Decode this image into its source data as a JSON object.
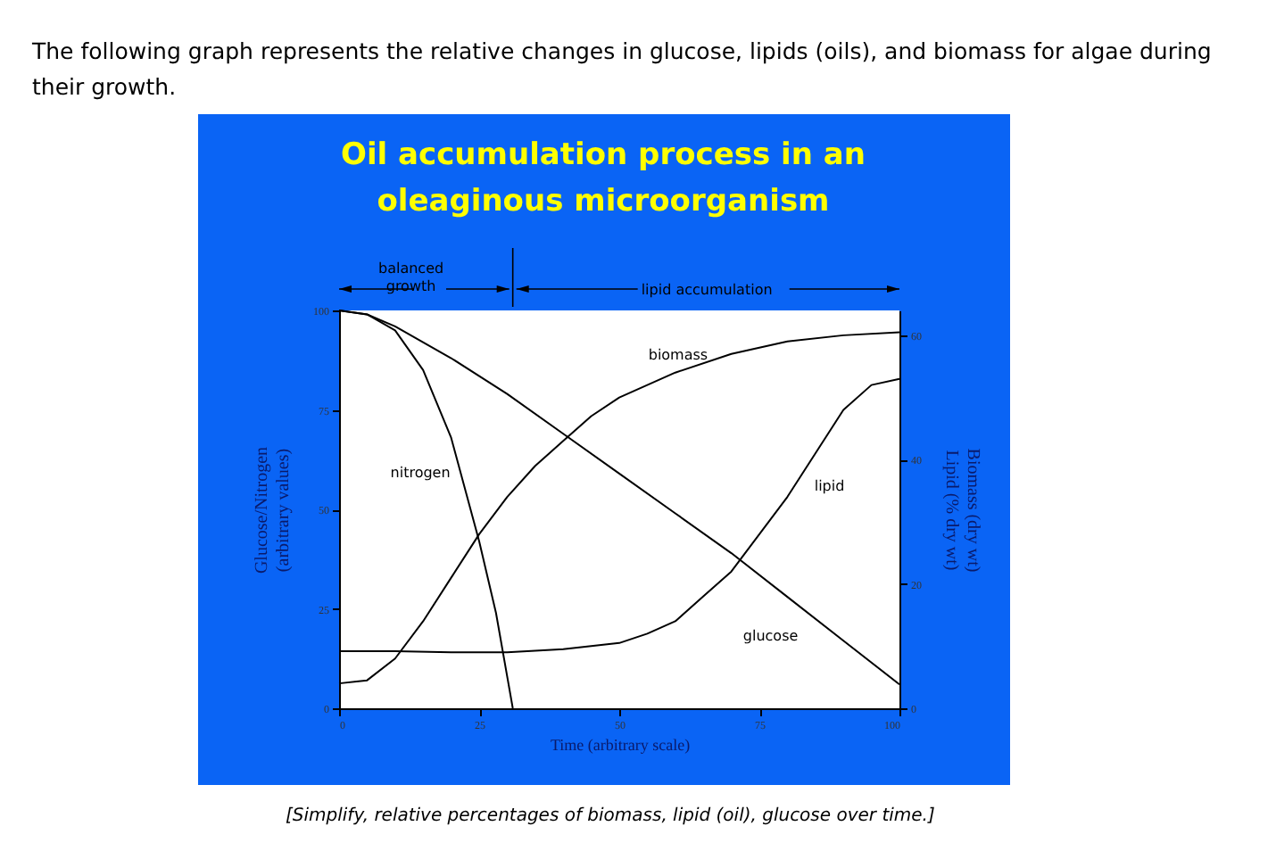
{
  "chart_data": {
    "type": "line",
    "title": "Oil accumulation process in an oleaginous microorganism",
    "xlabel": "Time (arbitrary scale)",
    "ylabel": "Glucose/Nitrogen\n(arbitrary values)",
    "y2label": "Biomass (dry wt)\nLipid (% dry wt)",
    "xlim": [
      0,
      100
    ],
    "xticks": [
      0,
      25,
      50,
      75,
      100
    ],
    "ylim": [
      0,
      100
    ],
    "yticks": [
      0,
      25,
      50,
      75,
      100
    ],
    "y2lim": [
      0,
      64
    ],
    "y2ticks": [
      0,
      20,
      40,
      60
    ],
    "grid": false,
    "legend": false,
    "marker": "none",
    "line_style": "solid",
    "series": [
      {
        "name": "glucose",
        "color": "#000000",
        "x": [
          0,
          5,
          10,
          20,
          30,
          40,
          50,
          60,
          70,
          80,
          90,
          100
        ],
        "values": [
          100,
          99,
          96,
          88,
          79,
          69,
          59,
          49,
          39,
          28,
          17,
          6
        ]
      },
      {
        "name": "nitrogen",
        "color": "#000000",
        "x": [
          0,
          5,
          10,
          15,
          20,
          25,
          28,
          31
        ],
        "values": [
          100,
          99,
          95,
          85,
          68,
          42,
          24,
          0
        ]
      },
      {
        "name": "biomass",
        "color": "#000000",
        "axis": "y2",
        "x": [
          0,
          5,
          10,
          15,
          20,
          25,
          30,
          35,
          40,
          45,
          50,
          60,
          70,
          80,
          90,
          100
        ],
        "values": [
          4,
          4.5,
          8,
          14,
          21,
          28,
          34,
          39,
          43,
          47,
          50,
          54,
          57,
          59,
          60,
          60.5
        ]
      },
      {
        "name": "lipid",
        "color": "#000000",
        "axis": "y2",
        "x": [
          0,
          10,
          20,
          30,
          40,
          50,
          55,
          60,
          65,
          70,
          75,
          80,
          85,
          90,
          95,
          100
        ],
        "values": [
          9.2,
          9.2,
          9,
          9,
          9.5,
          10.5,
          12,
          14,
          18,
          22,
          28,
          34,
          41,
          48,
          52,
          53
        ]
      }
    ],
    "annotations": [
      "The following graph represents the relative changes in glucose, lipids (oils), and biomass for algae during their growth.",
      "balanced\ngrowth",
      "lipid accumulation",
      "[Simplify, relative percentages of biomass, lipid (oil), glucose over time.]"
    ]
  }
}
